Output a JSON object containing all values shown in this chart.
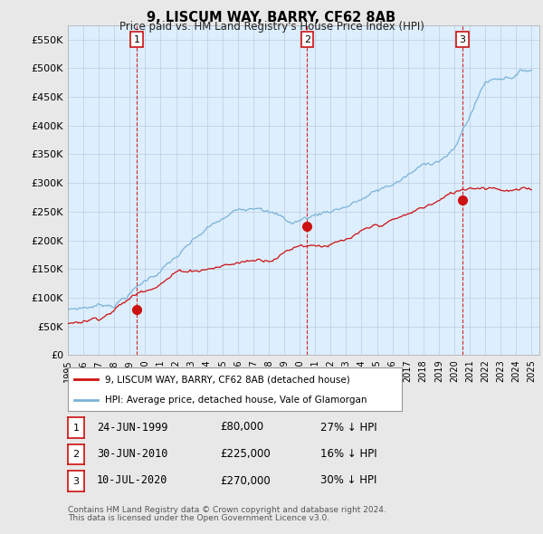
{
  "title": "9, LISCUM WAY, BARRY, CF62 8AB",
  "subtitle": "Price paid vs. HM Land Registry's House Price Index (HPI)",
  "ylim": [
    0,
    575000
  ],
  "yticks": [
    0,
    50000,
    100000,
    150000,
    200000,
    250000,
    300000,
    350000,
    400000,
    450000,
    500000,
    550000
  ],
  "ytick_labels": [
    "£0",
    "£50K",
    "£100K",
    "£150K",
    "£200K",
    "£250K",
    "£300K",
    "£350K",
    "£400K",
    "£450K",
    "£500K",
    "£550K"
  ],
  "hpi_color": "#7ab3d8",
  "price_color": "#cc1111",
  "marker_color": "#cc1111",
  "bg_color": "#e8e8e8",
  "plot_bg_color": "#ddeeff",
  "grid_color": "#bbccdd",
  "transactions": [
    {
      "label": "1",
      "date": "24-JUN-1999",
      "price": 80000,
      "note": "27% ↓ HPI",
      "year": 1999.47
    },
    {
      "label": "2",
      "date": "30-JUN-2010",
      "price": 225000,
      "note": "16% ↓ HPI",
      "year": 2010.49
    },
    {
      "label": "3",
      "date": "10-JUL-2020",
      "price": 270000,
      "note": "30% ↓ HPI",
      "year": 2020.53
    }
  ],
  "legend_entries": [
    {
      "label": "9, LISCUM WAY, BARRY, CF62 8AB (detached house)",
      "color": "#cc1111"
    },
    {
      "label": "HPI: Average price, detached house, Vale of Glamorgan",
      "color": "#7ab3d8"
    }
  ],
  "footer1": "Contains HM Land Registry data © Crown copyright and database right 2024.",
  "footer2": "This data is licensed under the Open Government Licence v3.0."
}
